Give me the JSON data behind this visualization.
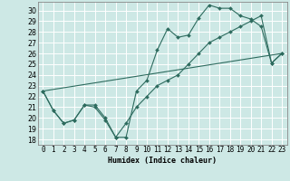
{
  "title": "",
  "xlabel": "Humidex (Indice chaleur)",
  "bg_color": "#cde8e5",
  "line_color": "#2d6b5e",
  "grid_color": "#ffffff",
  "xlim": [
    -0.5,
    23.5
  ],
  "ylim": [
    17.5,
    30.8
  ],
  "xticks": [
    0,
    1,
    2,
    3,
    4,
    5,
    6,
    7,
    8,
    9,
    10,
    11,
    12,
    13,
    14,
    15,
    16,
    17,
    18,
    19,
    20,
    21,
    22,
    23
  ],
  "yticks": [
    18,
    19,
    20,
    21,
    22,
    23,
    24,
    25,
    26,
    27,
    28,
    29,
    30
  ],
  "line1_x": [
    0,
    1,
    2,
    3,
    4,
    5,
    6,
    7,
    8,
    9,
    10,
    11,
    12,
    13,
    14,
    15,
    16,
    17,
    18,
    19,
    20,
    21,
    22,
    23
  ],
  "line1_y": [
    22.5,
    20.7,
    19.5,
    19.8,
    21.2,
    21.2,
    20.0,
    18.2,
    18.2,
    22.5,
    23.5,
    26.3,
    28.3,
    27.5,
    27.7,
    29.3,
    30.5,
    30.2,
    30.2,
    29.5,
    29.2,
    28.5,
    25.1,
    26.0
  ],
  "line2_x": [
    0,
    1,
    2,
    3,
    4,
    5,
    6,
    7,
    8,
    9,
    10,
    11,
    12,
    13,
    14,
    15,
    16,
    17,
    18,
    19,
    20,
    21,
    22,
    23
  ],
  "line2_y": [
    22.5,
    20.7,
    19.5,
    19.8,
    21.2,
    21.0,
    19.8,
    18.2,
    19.5,
    21.0,
    22.0,
    23.0,
    23.5,
    24.0,
    25.0,
    26.0,
    27.0,
    27.5,
    28.0,
    28.5,
    29.0,
    29.5,
    25.1,
    26.0
  ],
  "line3_x": [
    0,
    23
  ],
  "line3_y": [
    22.5,
    26.0
  ],
  "xlabel_fontsize": 6,
  "tick_fontsize": 5.5
}
